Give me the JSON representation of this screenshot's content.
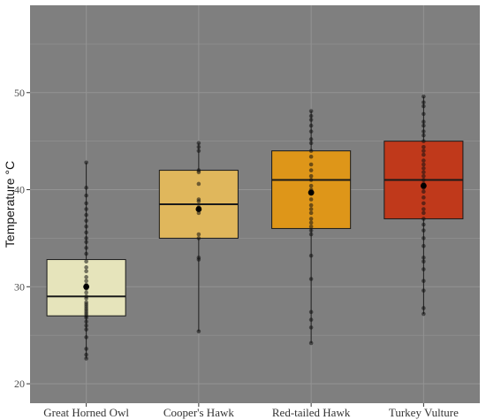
{
  "chart_data": {
    "type": "box",
    "title": "",
    "xlabel": "",
    "ylabel": "Temperature °C",
    "ylim": [
      18,
      59
    ],
    "yticks": [
      20,
      30,
      40,
      50
    ],
    "grid": true,
    "legend": "none",
    "background_color": "#7f7f7f",
    "grid_color": "#939393",
    "categories": [
      "Great Horned Owl",
      "Cooper's Hawk",
      "Red-tailed Hawk",
      "Turkey Vulture"
    ],
    "series": [
      {
        "category": "Great Horned Owl",
        "color": "#e6e4bb",
        "whisker_low": 22.6,
        "q1": 27.0,
        "median": 29.0,
        "q3": 32.8,
        "whisker_high": 42.8,
        "mean": 30.0,
        "points": [
          22.6,
          23.0,
          23.6,
          24.8,
          25.6,
          26.0,
          26.4,
          26.8,
          27.0,
          27.2,
          27.4,
          27.6,
          27.8,
          28.0,
          28.2,
          28.4,
          28.8,
          29.0,
          29.4,
          29.8,
          30.0,
          30.2,
          30.6,
          31.0,
          31.6,
          32.0,
          32.6,
          33.4,
          34.0,
          34.6,
          35.0,
          35.6,
          36.2,
          36.8,
          37.4,
          38.0,
          38.6,
          39.4,
          40.2,
          42.8
        ]
      },
      {
        "category": "Cooper's Hawk",
        "color": "#e0b75c",
        "whisker_low": 25.4,
        "q1": 35.0,
        "median": 38.5,
        "q3": 42.0,
        "whisker_high": 44.8,
        "mean": 38.0,
        "points": [
          25.4,
          32.8,
          33.0,
          35.0,
          35.4,
          37.6,
          38.0,
          38.2,
          38.8,
          39.0,
          40.6,
          41.8,
          42.0,
          44.0,
          44.4,
          44.8
        ]
      },
      {
        "category": "Red-tailed Hawk",
        "color": "#de9619",
        "whisker_low": 24.2,
        "q1": 36.0,
        "median": 41.0,
        "q3": 44.0,
        "whisker_high": 48.1,
        "mean": 39.7,
        "points": [
          24.2,
          25.8,
          26.6,
          27.4,
          30.8,
          33.2,
          35.4,
          35.8,
          36.2,
          36.6,
          37.0,
          37.6,
          38.0,
          38.4,
          39.0,
          39.6,
          40.0,
          40.4,
          41.0,
          41.4,
          42.0,
          42.6,
          43.4,
          44.0,
          44.8,
          45.2,
          46.0,
          46.6,
          47.2,
          47.6,
          48.1
        ]
      },
      {
        "category": "Turkey Vulture",
        "color": "#c0391b",
        "whisker_low": 27.2,
        "q1": 37.0,
        "median": 41.0,
        "q3": 45.0,
        "whisker_high": 49.6,
        "mean": 40.4,
        "points": [
          27.2,
          27.8,
          29.6,
          30.6,
          31.8,
          32.6,
          33.0,
          34.2,
          35.0,
          35.8,
          36.4,
          37.0,
          37.6,
          38.0,
          38.6,
          39.2,
          39.8,
          40.2,
          40.6,
          41.0,
          41.4,
          41.8,
          42.2,
          42.6,
          43.0,
          43.6,
          44.0,
          44.4,
          45.0,
          45.6,
          46.0,
          46.6,
          47.0,
          47.8,
          48.6,
          49.0,
          49.6
        ]
      }
    ]
  }
}
